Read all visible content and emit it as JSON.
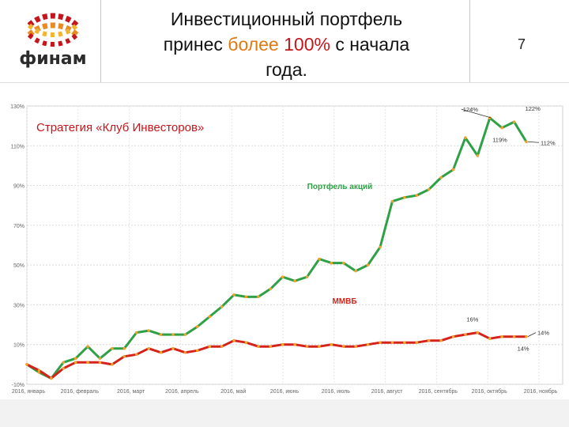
{
  "header": {
    "brand": "финам",
    "title_line1": "Инвестиционный портфель",
    "title_line2_pre": "принес ",
    "title_line2_red": "более",
    "title_line2_orange": "100%",
    "title_line2_post": " с начала",
    "title_line3": "года.",
    "page_number": "7"
  },
  "colors": {
    "portfolio": "#2fa046",
    "index": "#d4231b",
    "markers": "#f0a22b",
    "title_red": "#c4161c",
    "title_orange": "#e07a10"
  },
  "chart_data": {
    "type": "line",
    "title": "Стратегия «Клуб Инвесторов»",
    "ylim": [
      -10,
      130
    ],
    "y_ticks": [
      "-10%",
      "10%",
      "30%",
      "50%",
      "70%",
      "90%",
      "110%",
      "130%"
    ],
    "y_tick_values": [
      -10,
      10,
      30,
      50,
      70,
      90,
      110,
      130
    ],
    "x_ticks": [
      "2016, январь",
      "2016, февраль",
      "2016, март",
      "2016, апрель",
      "2016, май",
      "2016, июнь",
      "2016, июль",
      "2016, август",
      "2016, сентябрь",
      "2016, октябрь",
      "2016, ноябрь"
    ],
    "grid": true,
    "series": [
      {
        "name": "Портфель акций",
        "values": [
          0,
          -4,
          -7,
          1,
          3,
          9,
          3,
          8,
          8,
          16,
          17,
          15,
          15,
          15,
          19,
          24,
          29,
          35,
          34,
          34,
          38,
          44,
          42,
          44,
          53,
          51,
          51,
          47,
          50,
          59,
          82,
          84,
          85,
          88,
          94,
          98,
          114,
          105,
          124,
          119,
          122,
          112
        ],
        "annotations": [
          {
            "index": 38,
            "text": "124%"
          },
          {
            "index": 39,
            "text": "119%"
          },
          {
            "index": 40,
            "text": "122%"
          },
          {
            "index": 41,
            "text": "112%"
          }
        ]
      },
      {
        "name": "ММВБ",
        "values": [
          0,
          -3,
          -7,
          -2,
          1,
          1,
          1,
          0,
          4,
          5,
          8,
          6,
          8,
          6,
          7,
          9,
          9,
          12,
          11,
          9,
          9,
          10,
          10,
          9,
          9,
          10,
          9,
          9,
          10,
          11,
          11,
          11,
          11,
          12,
          12,
          14,
          15,
          16,
          13,
          14,
          14,
          14
        ],
        "annotations": [
          {
            "index": 37,
            "text": "16%"
          },
          {
            "index": 40,
            "text": "14%"
          },
          {
            "index": 41,
            "text": "14%"
          }
        ]
      }
    ]
  }
}
